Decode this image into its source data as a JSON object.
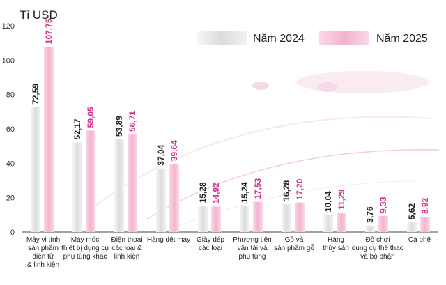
{
  "chart_data": {
    "type": "bar",
    "unit_label": "Tỉ USD",
    "ylim": [
      0,
      120
    ],
    "y_ticks": [
      "0",
      "20",
      "40",
      "60",
      "80",
      "100",
      "120"
    ],
    "grid": false,
    "legend_position": "top-right",
    "categories": [
      [
        "Máy vi tính",
        "sản phẩm",
        "điện tử",
        "& linh kiện"
      ],
      [
        "Máy móc",
        "thiết bị dụng cụ",
        "phụ tùng khác"
      ],
      [
        "Điện thoại",
        "các loại &",
        "linh kiện"
      ],
      [
        "Hàng dệt may"
      ],
      [
        "Giày dép",
        "các loại"
      ],
      [
        "Phương tiện",
        "vận tải và",
        "phụ tùng"
      ],
      [
        "Gỗ và",
        "sản phẩm gỗ"
      ],
      [
        "Hàng",
        "thủy sản"
      ],
      [
        "Đồ chơi",
        "dụng cụ thể thao",
        "và bộ phận"
      ],
      [
        "Cà phê"
      ]
    ],
    "series": [
      {
        "name": "Năm 2024",
        "color": "#e4e4e4",
        "label_color": "#222222",
        "values": [
          72.59,
          52.17,
          53.89,
          37.04,
          15.28,
          15.24,
          16.28,
          10.04,
          3.76,
          5.62
        ],
        "labels": [
          "72,59",
          "52,17",
          "53,89",
          "37,04",
          "15,28",
          "15,24",
          "16,28",
          "10,04",
          "3,76",
          "5,62"
        ]
      },
      {
        "name": "Năm 2025",
        "color": "#f5bfd6",
        "label_color": "#d6318a",
        "values": [
          107.75,
          59.05,
          56.71,
          39.64,
          14.92,
          17.53,
          17.2,
          11.29,
          9.33,
          8.92
        ],
        "labels": [
          "107,75",
          "59,05",
          "56,71",
          "39,64",
          "14,92",
          "17,53",
          "17,20",
          "11,29",
          "9,33",
          "8,92"
        ]
      }
    ]
  }
}
